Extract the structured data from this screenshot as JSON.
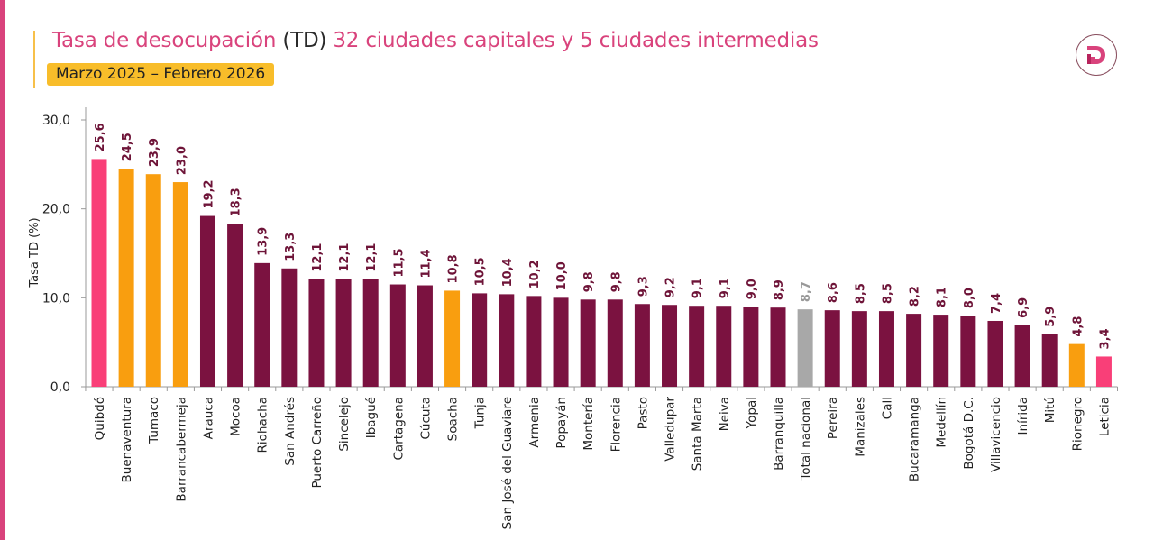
{
  "header": {
    "title_part1": "Tasa de desocupación",
    "title_part2": "(TD)",
    "title_part3": "32 ciudades capitales y 5 ciudades intermedias",
    "period": "Marzo 2025 – Febrero 2026",
    "logo_icon": "d-logo-icon"
  },
  "colors": {
    "accent": "#d9437c",
    "capital": "#7b1240",
    "intermediate": "#f99e0f",
    "extreme": "#f93f78",
    "national": "#a8a8a8",
    "period_badge": "#f8bd2a"
  },
  "chart_data": {
    "type": "bar",
    "title": "Tasa de desocupación (TD) 32 ciudades capitales y 5 ciudades intermedias",
    "subtitle": "Marzo 2025 – Febrero 2026",
    "xlabel": "",
    "ylabel": "Tasa TD (%)",
    "ylim": [
      0,
      30
    ],
    "yticks": [
      "0,0",
      "10,0",
      "20,0",
      "30,0"
    ],
    "ytick_values": [
      0,
      10,
      20,
      30
    ],
    "grid": false,
    "legend": "none",
    "categories": [
      "Quibdó",
      "Buenaventura",
      "Tumaco",
      "Barrancabermeja",
      "Arauca",
      "Mocoa",
      "Riohacha",
      "San Andrés",
      "Puerto Carreño",
      "Sincelejo",
      "Ibagué",
      "Cartagena",
      "Cúcuta",
      "Soacha",
      "Tunja",
      "San José del Guaviare",
      "Armenia",
      "Popayán",
      "Montería",
      "Florencia",
      "Pasto",
      "Valledupar",
      "Santa Marta",
      "Neiva",
      "Yopal",
      "Barranquilla",
      "Total nacional",
      "Pereira",
      "Manizales",
      "Cali",
      "Bucaramanga",
      "Medellín",
      "Bogotá D.C.",
      "Villavicencio",
      "Inírida",
      "Mitú",
      "Rionegro",
      "Leticia"
    ],
    "values": [
      25.6,
      24.5,
      23.9,
      23.0,
      19.2,
      18.3,
      13.9,
      13.3,
      12.1,
      12.1,
      12.1,
      11.5,
      11.4,
      10.8,
      10.5,
      10.4,
      10.2,
      10.0,
      9.8,
      9.8,
      9.3,
      9.2,
      9.1,
      9.1,
      9.0,
      8.9,
      8.7,
      8.6,
      8.5,
      8.5,
      8.2,
      8.1,
      8.0,
      7.4,
      6.9,
      5.9,
      4.8,
      3.4
    ],
    "labels": [
      "25,6",
      "24,5",
      "23,9",
      "23,0",
      "19,2",
      "18,3",
      "13,9",
      "13,3",
      "12,1",
      "12,1",
      "12,1",
      "11,5",
      "11,4",
      "10,8",
      "10,5",
      "10,4",
      "10,2",
      "10,0",
      "9,8",
      "9,8",
      "9,3",
      "9,2",
      "9,1",
      "9,1",
      "9,0",
      "8,9",
      "8,7",
      "8,6",
      "8,5",
      "8,5",
      "8,2",
      "8,1",
      "8,0",
      "7,4",
      "6,9",
      "5,9",
      "4,8",
      "3,4"
    ],
    "groups": [
      "extreme",
      "intermediate",
      "intermediate",
      "intermediate",
      "capital",
      "capital",
      "capital",
      "capital",
      "capital",
      "capital",
      "capital",
      "capital",
      "capital",
      "intermediate",
      "capital",
      "capital",
      "capital",
      "capital",
      "capital",
      "capital",
      "capital",
      "capital",
      "capital",
      "capital",
      "capital",
      "capital",
      "national",
      "capital",
      "capital",
      "capital",
      "capital",
      "capital",
      "capital",
      "capital",
      "capital",
      "capital",
      "intermediate",
      "extreme"
    ]
  }
}
